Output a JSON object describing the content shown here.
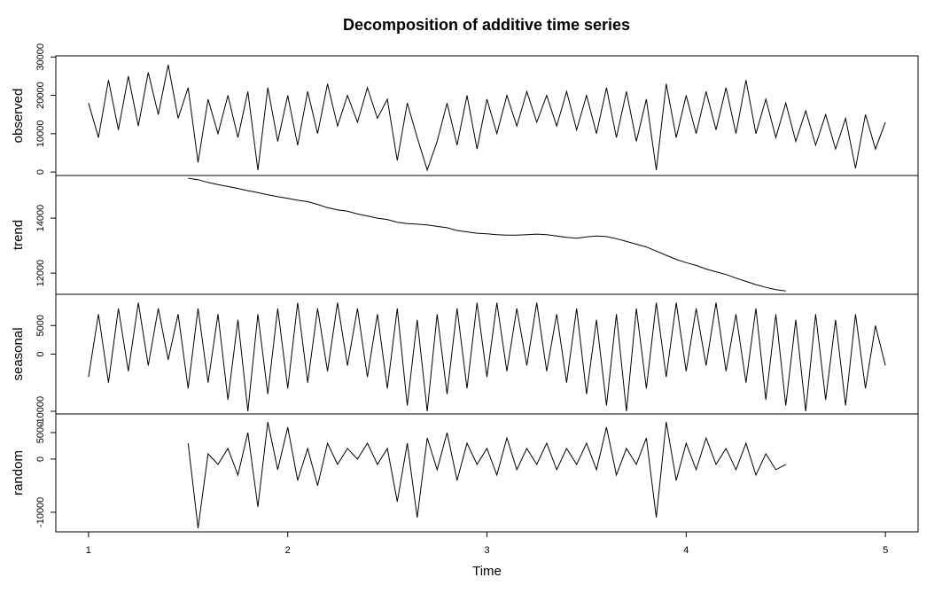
{
  "chart_data": [
    {
      "type": "line",
      "title": "Decomposition of additive time series",
      "y_label": "observed",
      "color": "#000000",
      "xlim": [
        0.836,
        5.164
      ],
      "ylim": [
        -900,
        30300
      ],
      "yticks": [
        0,
        10000,
        20000,
        30000
      ],
      "x": [
        1,
        1.05,
        1.1,
        1.15,
        1.2,
        1.25,
        1.3,
        1.35,
        1.4,
        1.45,
        1.5,
        1.55,
        1.6,
        1.65,
        1.7,
        1.75,
        1.8,
        1.85,
        1.9,
        1.95,
        2,
        2.05,
        2.1,
        2.15,
        2.2,
        2.25,
        2.3,
        2.35,
        2.4,
        2.45,
        2.5,
        2.55,
        2.6,
        2.65,
        2.7,
        2.75,
        2.8,
        2.85,
        2.9,
        2.95,
        3,
        3.05,
        3.1,
        3.15,
        3.2,
        3.25,
        3.3,
        3.35,
        3.4,
        3.45,
        3.5,
        3.55,
        3.6,
        3.65,
        3.7,
        3.75,
        3.8,
        3.85,
        3.9,
        3.95,
        4,
        4.05,
        4.1,
        4.15,
        4.2,
        4.25,
        4.3,
        4.35,
        4.4,
        4.45,
        4.5,
        4.55,
        4.6,
        4.65,
        4.7,
        4.75,
        4.8,
        4.85,
        4.9,
        4.95,
        5
      ],
      "values": [
        18000,
        9000,
        24000,
        11000,
        25000,
        12000,
        26000,
        15000,
        28000,
        14000,
        22000,
        2500,
        19000,
        10000,
        20000,
        9000,
        21000,
        500,
        22000,
        8000,
        20000,
        7000,
        21000,
        10000,
        23000,
        12000,
        20000,
        13000,
        22000,
        14000,
        19000,
        3000,
        18000,
        9000,
        500,
        8000,
        18000,
        7000,
        20000,
        6000,
        19000,
        10000,
        20000,
        12000,
        21000,
        13000,
        20000,
        12000,
        21000,
        11000,
        20000,
        10000,
        22000,
        9000,
        21000,
        8000,
        19000,
        500,
        23000,
        9000,
        20000,
        10000,
        21000,
        11000,
        22000,
        10000,
        24000,
        10000,
        19000,
        9000,
        18000,
        8000,
        16000,
        7000,
        15000,
        6000,
        14000,
        1000,
        15000,
        6000,
        13000
      ]
    },
    {
      "type": "line",
      "y_label": "trend",
      "color": "#000000",
      "xlim": [
        0.836,
        5.164
      ],
      "ylim": [
        11230,
        15550
      ],
      "yticks": [
        12000,
        14000
      ],
      "x": [
        1.5,
        1.55,
        1.6,
        1.65,
        1.7,
        1.75,
        1.8,
        1.85,
        1.9,
        1.95,
        2,
        2.05,
        2.1,
        2.15,
        2.2,
        2.25,
        2.3,
        2.35,
        2.4,
        2.45,
        2.5,
        2.55,
        2.6,
        2.65,
        2.7,
        2.75,
        2.8,
        2.85,
        2.9,
        2.95,
        3,
        3.05,
        3.1,
        3.15,
        3.2,
        3.25,
        3.3,
        3.35,
        3.4,
        3.45,
        3.5,
        3.55,
        3.6,
        3.65,
        3.7,
        3.75,
        3.8,
        3.85,
        3.9,
        3.95,
        4,
        4.05,
        4.1,
        4.15,
        4.2,
        4.25,
        4.3,
        4.35,
        4.4,
        4.45,
        4.5
      ],
      "values": [
        15450,
        15400,
        15300,
        15220,
        15150,
        15080,
        15000,
        14930,
        14850,
        14780,
        14720,
        14650,
        14600,
        14500,
        14380,
        14300,
        14250,
        14150,
        14080,
        14000,
        13950,
        13850,
        13800,
        13780,
        13750,
        13700,
        13650,
        13550,
        13500,
        13450,
        13430,
        13400,
        13380,
        13380,
        13400,
        13420,
        13400,
        13350,
        13300,
        13270,
        13320,
        13350,
        13330,
        13250,
        13150,
        13050,
        12950,
        12800,
        12650,
        12500,
        12380,
        12280,
        12150,
        12050,
        11950,
        11820,
        11700,
        11580,
        11480,
        11400,
        11350
      ]
    },
    {
      "type": "line",
      "y_label": "seasonal",
      "color": "#000000",
      "xlim": [
        0.836,
        5.164
      ],
      "ylim": [
        -10470,
        10470
      ],
      "yticks": [
        -10000,
        0,
        5000
      ],
      "x": [
        1,
        1.05,
        1.1,
        1.15,
        1.2,
        1.25,
        1.3,
        1.35,
        1.4,
        1.45,
        1.5,
        1.55,
        1.6,
        1.65,
        1.7,
        1.75,
        1.8,
        1.85,
        1.9,
        1.95,
        2,
        2.05,
        2.1,
        2.15,
        2.2,
        2.25,
        2.3,
        2.35,
        2.4,
        2.45,
        2.5,
        2.55,
        2.6,
        2.65,
        2.7,
        2.75,
        2.8,
        2.85,
        2.9,
        2.95,
        3,
        3.05,
        3.1,
        3.15,
        3.2,
        3.25,
        3.3,
        3.35,
        3.4,
        3.45,
        3.5,
        3.55,
        3.6,
        3.65,
        3.7,
        3.75,
        3.8,
        3.85,
        3.9,
        3.95,
        4,
        4.05,
        4.1,
        4.15,
        4.2,
        4.25,
        4.3,
        4.35,
        4.4,
        4.45,
        4.5,
        4.55,
        4.6,
        4.65,
        4.7,
        4.75,
        4.8,
        4.85,
        4.9,
        4.95,
        5
      ],
      "values": [
        -4000,
        7000,
        -5000,
        8000,
        -3000,
        9000,
        -2000,
        8000,
        -1000,
        7000,
        -6000,
        8000,
        -5000,
        7000,
        -8000,
        6000,
        -10000,
        7000,
        -7000,
        8000,
        -6000,
        9000,
        -5000,
        8000,
        -3000,
        9000,
        -2000,
        8000,
        -4000,
        7000,
        -6000,
        8000,
        -9000,
        6000,
        -10000,
        7000,
        -7000,
        8000,
        -6000,
        9000,
        -4000,
        9000,
        -3000,
        8000,
        -2000,
        9000,
        -3000,
        7000,
        -5000,
        8000,
        -7000,
        6000,
        -9000,
        7000,
        -10000,
        8000,
        -6000,
        9000,
        -4000,
        9000,
        -3000,
        8000,
        -2000,
        9000,
        -3000,
        7000,
        -5000,
        8000,
        -8000,
        7000,
        -9000,
        6000,
        -10000,
        7000,
        -8000,
        6000,
        -9000,
        7000,
        -6000,
        5000,
        -2000
      ]
    },
    {
      "type": "line",
      "y_label": "random",
      "x_label": "Time",
      "color": "#000000",
      "xlim": [
        0.836,
        5.164
      ],
      "ylim": [
        -13700,
        8500
      ],
      "yticks": [
        -10000,
        0,
        5000
      ],
      "xticks": [
        1,
        2,
        3,
        4,
        5
      ],
      "x": [
        1.5,
        1.55,
        1.6,
        1.65,
        1.7,
        1.75,
        1.8,
        1.85,
        1.9,
        1.95,
        2,
        2.05,
        2.1,
        2.15,
        2.2,
        2.25,
        2.3,
        2.35,
        2.4,
        2.45,
        2.5,
        2.55,
        2.6,
        2.65,
        2.7,
        2.75,
        2.8,
        2.85,
        2.9,
        2.95,
        3,
        3.05,
        3.1,
        3.15,
        3.2,
        3.25,
        3.3,
        3.35,
        3.4,
        3.45,
        3.5,
        3.55,
        3.6,
        3.65,
        3.7,
        3.75,
        3.8,
        3.85,
        3.9,
        3.95,
        4,
        4.05,
        4.1,
        4.15,
        4.2,
        4.25,
        4.3,
        4.35,
        4.4,
        4.45,
        4.5
      ],
      "values": [
        3000,
        -13000,
        1000,
        -1000,
        2000,
        -3000,
        5000,
        -9000,
        7000,
        -2000,
        6000,
        -4000,
        2000,
        -5000,
        3000,
        -1000,
        2000,
        0,
        3000,
        -1000,
        2000,
        -8000,
        3000,
        -11000,
        4000,
        -2000,
        5000,
        -4000,
        3000,
        -1000,
        2000,
        -3000,
        4000,
        -2000,
        2000,
        -1000,
        3000,
        -2000,
        2000,
        -1000,
        3000,
        -2000,
        6000,
        -3000,
        2000,
        -1000,
        4000,
        -11000,
        7000,
        -4000,
        3000,
        -2000,
        4000,
        -1000,
        2000,
        -2000,
        3000,
        -3000,
        1000,
        -2000,
        -1000
      ]
    }
  ]
}
